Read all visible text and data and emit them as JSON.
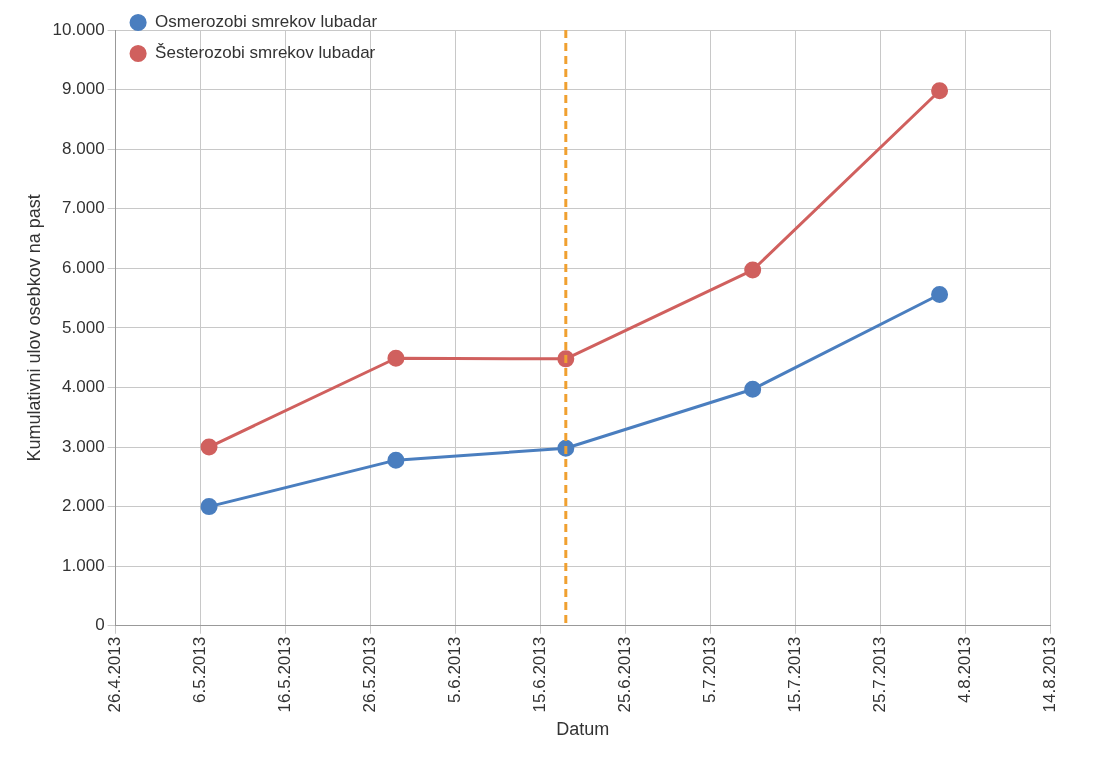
{
  "chart_data": {
    "type": "line",
    "xlabel": "Datum",
    "ylabel": "Kumulativni ulov osebkov na past",
    "x": [
      "2013-05-07",
      "2013-05-29",
      "2013-06-18",
      "2013-07-10",
      "2013-08-01"
    ],
    "series": [
      {
        "name": "Osmerozobi smrekov lubadar",
        "color": "#4a7ebf",
        "values": [
          2000,
          2780,
          2980,
          3970,
          5560
        ]
      },
      {
        "name": "Šesterozobi smrekov lubadar",
        "color": "#d0605e",
        "values": [
          3000,
          4490,
          4480,
          5970,
          8980
        ]
      }
    ],
    "xlim": [
      "2013-04-26",
      "2013-08-14"
    ],
    "xticks": [
      {
        "value": "2013-04-26",
        "label": "26.4.2013"
      },
      {
        "value": "2013-05-06",
        "label": "6.5.2013"
      },
      {
        "value": "2013-05-16",
        "label": "16.5.2013"
      },
      {
        "value": "2013-05-26",
        "label": "26.5.2013"
      },
      {
        "value": "2013-06-05",
        "label": "5.6.2013"
      },
      {
        "value": "2013-06-15",
        "label": "15.6.2013"
      },
      {
        "value": "2013-06-25",
        "label": "25.6.2013"
      },
      {
        "value": "2013-07-05",
        "label": "5.7.2013"
      },
      {
        "value": "2013-07-15",
        "label": "15.7.2013"
      },
      {
        "value": "2013-07-25",
        "label": "25.7.2013"
      },
      {
        "value": "2013-08-04",
        "label": "4.8.2013"
      },
      {
        "value": "2013-08-14",
        "label": "14.8.2013"
      }
    ],
    "ylim": [
      0,
      10000
    ],
    "yticks": [
      0,
      {
        "value": 1000,
        "label": "1.000"
      },
      {
        "value": 2000,
        "label": "2.000"
      },
      {
        "value": 3000,
        "label": "3.000"
      },
      {
        "value": 4000,
        "label": "4.000"
      },
      {
        "value": 5000,
        "label": "5.000"
      },
      {
        "value": 6000,
        "label": "6.000"
      },
      {
        "value": 7000,
        "label": "7.000"
      },
      {
        "value": 8000,
        "label": "8.000"
      },
      {
        "value": 9000,
        "label": "9.000"
      },
      {
        "value": 10000,
        "label": "10.000"
      }
    ],
    "ref_lines": [
      {
        "axis": "x",
        "value": "2013-06-18",
        "label": null,
        "color": "#f0a030",
        "line_style": "dashed"
      }
    ],
    "grid": true,
    "legend": "top left",
    "marker": "circle",
    "line_style": "solid"
  }
}
